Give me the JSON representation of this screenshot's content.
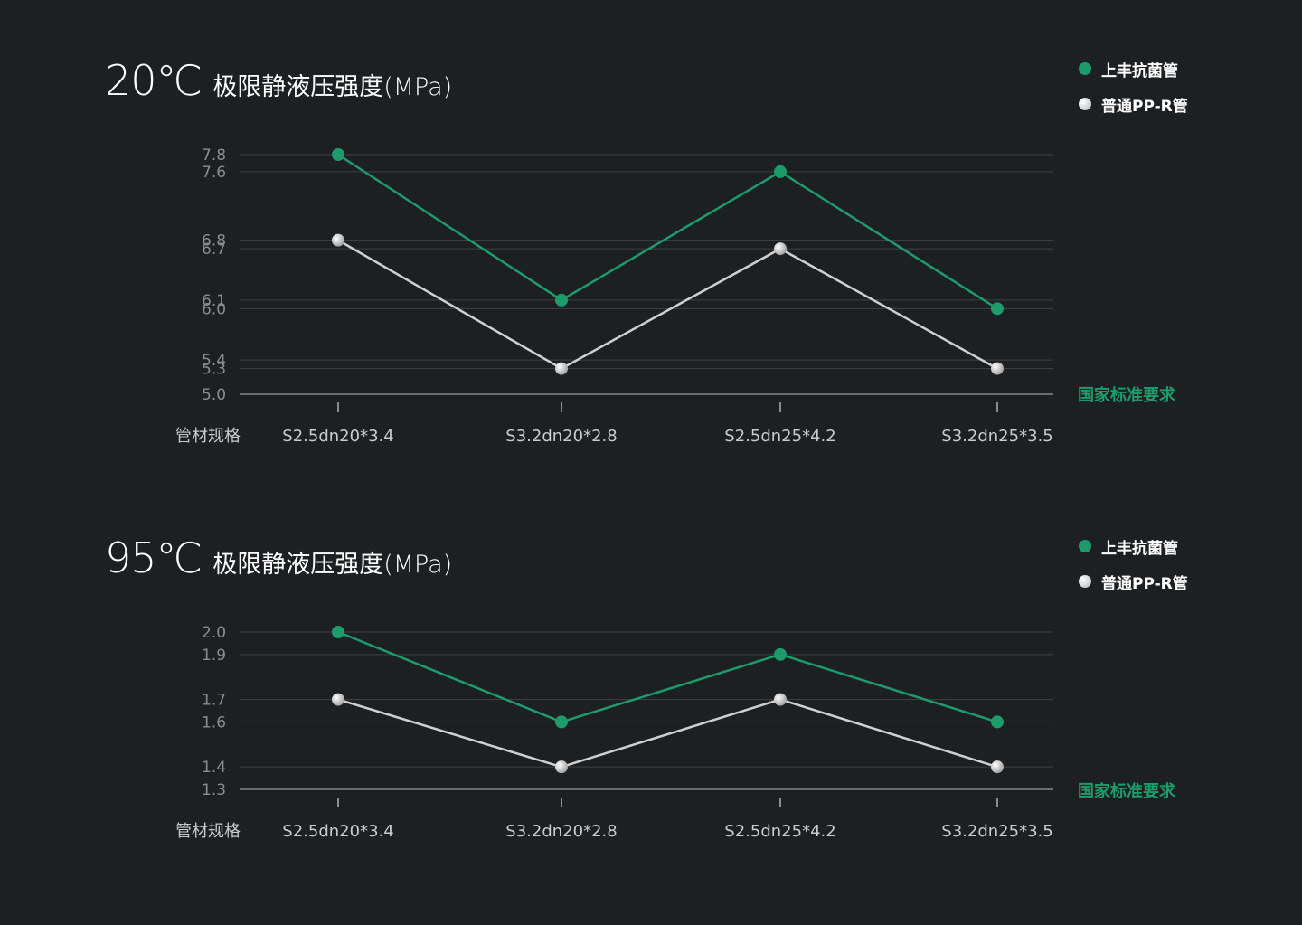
{
  "colors": {
    "background": "#1d2023",
    "series_antibacterial": "#1e9b6b",
    "series_standard": "#d0d0d0",
    "gridline": "#3e4245",
    "baseline": "#6a6d70",
    "tick_text": "#8a8d90",
    "category_text": "#c9cbcd",
    "standard_label": "#1e9b6b"
  },
  "chart_data": [
    {
      "type": "line",
      "title_temp": "20℃",
      "title_text": "极限静液压强度(MPa)",
      "xlabel": "管材规格",
      "baseline_label": "国家标准要求",
      "categories": [
        "S2.5dn20*3.4",
        "S3.2dn20*2.8",
        "S2.5dn25*4.2",
        "S3.2dn25*3.5"
      ],
      "y_ticks": [
        "7.8",
        "7.6",
        "6.8",
        "6.7",
        "6.1",
        "6.0",
        "5.4",
        "5.3",
        "5.0"
      ],
      "series": [
        {
          "name": "上丰抗菌管",
          "values": [
            7.8,
            6.1,
            7.6,
            6.0
          ]
        },
        {
          "name": "普通PP-R管",
          "values": [
            6.8,
            5.3,
            6.7,
            5.3
          ]
        }
      ],
      "legend": [
        "上丰抗菌管",
        "普通PP-R管"
      ],
      "legend_position": "top-right",
      "grid": true
    },
    {
      "type": "line",
      "title_temp": "95℃",
      "title_text": "极限静液压强度(MPa)",
      "xlabel": "管材规格",
      "baseline_label": "国家标准要求",
      "categories": [
        "S2.5dn20*3.4",
        "S3.2dn20*2.8",
        "S2.5dn25*4.2",
        "S3.2dn25*3.5"
      ],
      "y_ticks": [
        "2.0",
        "1.9",
        "1.7",
        "1.6",
        "1.4",
        "1.3"
      ],
      "series": [
        {
          "name": "上丰抗菌管",
          "values": [
            2.0,
            1.6,
            1.9,
            1.6
          ]
        },
        {
          "name": "普通PP-R管",
          "values": [
            1.7,
            1.4,
            1.7,
            1.4
          ]
        }
      ],
      "legend": [
        "上丰抗菌管",
        "普通PP-R管"
      ],
      "legend_position": "top-right",
      "grid": true
    }
  ]
}
